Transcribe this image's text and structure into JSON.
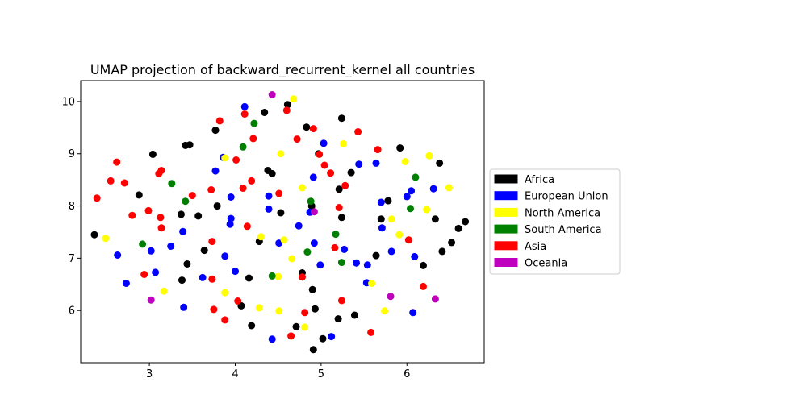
{
  "chart_data": {
    "type": "scatter",
    "title": "UMAP projection of backward_recurrent_kernel all countries",
    "xlabel": "",
    "ylabel": "",
    "xlim": [
      2.2,
      6.9
    ],
    "ylim": [
      5.0,
      10.4
    ],
    "xticks": [
      3,
      4,
      5,
      6
    ],
    "yticks": [
      6,
      7,
      8,
      9,
      10
    ],
    "grid": false,
    "legend_position": "right",
    "series": [
      {
        "name": "Africa",
        "color": "#000000",
        "points": [
          [
            2.36,
            7.45
          ],
          [
            2.88,
            8.21
          ],
          [
            3.04,
            8.99
          ],
          [
            3.37,
            7.84
          ],
          [
            3.42,
            9.16
          ],
          [
            3.47,
            9.17
          ],
          [
            3.44,
            6.89
          ],
          [
            3.38,
            6.58
          ],
          [
            3.57,
            7.81
          ],
          [
            3.64,
            7.15
          ],
          [
            3.77,
            9.45
          ],
          [
            3.79,
            8.0
          ],
          [
            4.07,
            6.09
          ],
          [
            4.16,
            6.62
          ],
          [
            4.19,
            5.71
          ],
          [
            4.28,
            7.32
          ],
          [
            4.34,
            9.79
          ],
          [
            4.38,
            8.68
          ],
          [
            4.43,
            8.62
          ],
          [
            4.53,
            7.87
          ],
          [
            4.61,
            9.94
          ],
          [
            4.71,
            5.69
          ],
          [
            4.78,
            6.72
          ],
          [
            4.83,
            9.51
          ],
          [
            4.89,
            8.0
          ],
          [
            4.9,
            6.4
          ],
          [
            4.91,
            5.25
          ],
          [
            4.93,
            6.03
          ],
          [
            4.97,
            9.0
          ],
          [
            5.02,
            5.46
          ],
          [
            5.2,
            5.84
          ],
          [
            5.21,
            8.32
          ],
          [
            5.24,
            7.78
          ],
          [
            5.24,
            9.68
          ],
          [
            5.35,
            8.64
          ],
          [
            5.39,
            5.91
          ],
          [
            5.64,
            7.05
          ],
          [
            5.7,
            7.75
          ],
          [
            5.78,
            8.1
          ],
          [
            5.92,
            9.11
          ],
          [
            6.19,
            6.86
          ],
          [
            6.33,
            7.75
          ],
          [
            6.38,
            8.82
          ],
          [
            6.41,
            7.13
          ],
          [
            6.52,
            7.3
          ],
          [
            6.6,
            7.57
          ],
          [
            6.68,
            7.7
          ]
        ]
      },
      {
        "name": "European Union",
        "color": "#0000ff",
        "points": [
          [
            2.63,
            7.06
          ],
          [
            2.73,
            6.52
          ],
          [
            3.02,
            7.14
          ],
          [
            3.07,
            6.73
          ],
          [
            3.25,
            7.23
          ],
          [
            3.39,
            7.51
          ],
          [
            3.4,
            6.06
          ],
          [
            3.62,
            6.63
          ],
          [
            3.77,
            8.67
          ],
          [
            3.86,
            8.93
          ],
          [
            3.88,
            7.04
          ],
          [
            3.94,
            7.65
          ],
          [
            3.95,
            8.17
          ],
          [
            3.95,
            7.76
          ],
          [
            4.0,
            6.75
          ],
          [
            4.11,
            9.9
          ],
          [
            4.39,
            8.19
          ],
          [
            4.39,
            7.94
          ],
          [
            4.43,
            5.45
          ],
          [
            4.51,
            7.29
          ],
          [
            4.74,
            7.62
          ],
          [
            4.87,
            7.88
          ],
          [
            4.91,
            8.55
          ],
          [
            4.92,
            7.29
          ],
          [
            4.99,
            6.87
          ],
          [
            5.03,
            9.2
          ],
          [
            5.12,
            5.5
          ],
          [
            5.27,
            7.17
          ],
          [
            5.41,
            6.91
          ],
          [
            5.44,
            8.8
          ],
          [
            5.53,
            6.53
          ],
          [
            5.54,
            6.87
          ],
          [
            5.64,
            8.82
          ],
          [
            5.7,
            8.07
          ],
          [
            5.71,
            7.58
          ],
          [
            5.82,
            7.13
          ],
          [
            6.0,
            8.18
          ],
          [
            6.05,
            8.29
          ],
          [
            6.07,
            5.96
          ],
          [
            6.09,
            7.03
          ],
          [
            6.31,
            8.33
          ]
        ]
      },
      {
        "name": "North America",
        "color": "#ffff00",
        "points": [
          [
            2.49,
            7.38
          ],
          [
            3.17,
            6.37
          ],
          [
            3.88,
            6.34
          ],
          [
            3.88,
            8.92
          ],
          [
            4.28,
            6.05
          ],
          [
            4.3,
            7.41
          ],
          [
            4.5,
            6.65
          ],
          [
            4.51,
            5.99
          ],
          [
            4.53,
            9.0
          ],
          [
            4.57,
            7.35
          ],
          [
            4.66,
            6.99
          ],
          [
            4.68,
            10.05
          ],
          [
            4.78,
            8.35
          ],
          [
            4.81,
            5.68
          ],
          [
            5.26,
            9.19
          ],
          [
            5.59,
            6.52
          ],
          [
            5.74,
            5.99
          ],
          [
            5.82,
            7.75
          ],
          [
            5.91,
            7.45
          ],
          [
            5.98,
            8.85
          ],
          [
            6.23,
            7.93
          ],
          [
            6.26,
            8.96
          ],
          [
            6.49,
            8.35
          ]
        ]
      },
      {
        "name": "South America",
        "color": "#008000",
        "points": [
          [
            2.92,
            7.27
          ],
          [
            3.26,
            8.43
          ],
          [
            3.42,
            8.09
          ],
          [
            4.09,
            9.13
          ],
          [
            4.22,
            9.58
          ],
          [
            4.43,
            6.66
          ],
          [
            4.84,
            7.12
          ],
          [
            4.88,
            8.09
          ],
          [
            5.17,
            7.46
          ],
          [
            5.24,
            6.92
          ],
          [
            6.04,
            7.95
          ],
          [
            6.1,
            8.55
          ]
        ]
      },
      {
        "name": "Asia",
        "color": "#ff0000",
        "points": [
          [
            2.39,
            8.15
          ],
          [
            2.55,
            8.48
          ],
          [
            2.62,
            8.84
          ],
          [
            2.71,
            8.44
          ],
          [
            2.8,
            7.82
          ],
          [
            2.94,
            6.69
          ],
          [
            2.99,
            7.91
          ],
          [
            3.11,
            8.62
          ],
          [
            3.14,
            8.68
          ],
          [
            3.13,
            7.78
          ],
          [
            3.14,
            7.58
          ],
          [
            3.5,
            8.2
          ],
          [
            3.72,
            8.31
          ],
          [
            3.73,
            7.32
          ],
          [
            3.73,
            6.6
          ],
          [
            3.75,
            6.02
          ],
          [
            3.82,
            9.63
          ],
          [
            3.88,
            5.82
          ],
          [
            4.01,
            8.88
          ],
          [
            4.03,
            6.18
          ],
          [
            4.09,
            8.34
          ],
          [
            4.11,
            9.76
          ],
          [
            4.14,
            7.61
          ],
          [
            4.19,
            8.48
          ],
          [
            4.21,
            9.29
          ],
          [
            4.51,
            8.24
          ],
          [
            4.6,
            9.83
          ],
          [
            4.65,
            5.51
          ],
          [
            4.72,
            9.28
          ],
          [
            4.78,
            6.64
          ],
          [
            4.81,
            5.96
          ],
          [
            4.91,
            9.48
          ],
          [
            4.98,
            8.99
          ],
          [
            5.04,
            8.78
          ],
          [
            5.11,
            8.63
          ],
          [
            5.16,
            7.2
          ],
          [
            5.21,
            7.97
          ],
          [
            5.24,
            6.19
          ],
          [
            5.28,
            8.39
          ],
          [
            5.43,
            9.42
          ],
          [
            5.58,
            5.58
          ],
          [
            5.66,
            9.08
          ],
          [
            6.02,
            7.35
          ],
          [
            6.19,
            6.46
          ]
        ]
      },
      {
        "name": "Oceania",
        "color": "#bf00bf",
        "points": [
          [
            3.02,
            6.2
          ],
          [
            4.43,
            10.13
          ],
          [
            4.92,
            7.89
          ],
          [
            5.81,
            6.27
          ],
          [
            6.33,
            6.22
          ]
        ]
      }
    ]
  }
}
